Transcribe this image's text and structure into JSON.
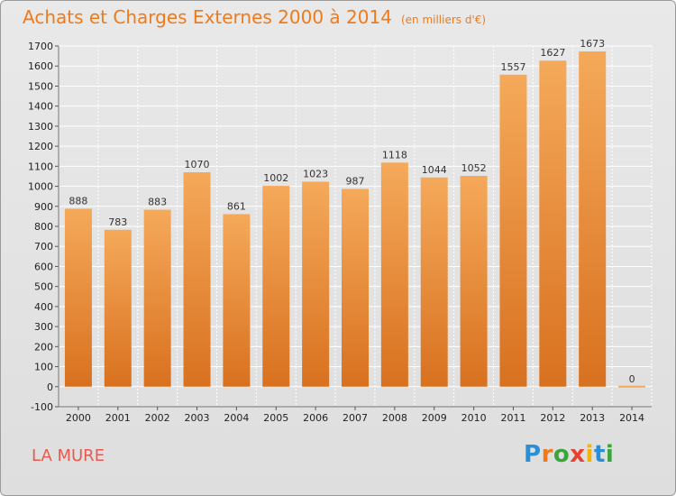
{
  "title": "Achats et Charges Externes 2000 à 2014",
  "subtitle": "(en milliers d'€)",
  "place": "LA MURE",
  "brand": {
    "letters": [
      "P",
      "r",
      "o",
      "x",
      "i",
      "t",
      "i"
    ],
    "colors": [
      "#2b8fd6",
      "#f07a1a",
      "#3aa63a",
      "#e8412f",
      "#f4b400",
      "#2b8fd6",
      "#3aa63a"
    ]
  },
  "colors": {
    "bar_top": "#f5a95a",
    "bar_bottom": "#d8711f",
    "title": "#f07a1a",
    "place": "#e85a4f",
    "grid": "#ffffff"
  },
  "chart_data": {
    "type": "bar",
    "categories": [
      "2000",
      "2001",
      "2002",
      "2003",
      "2004",
      "2005",
      "2006",
      "2007",
      "2008",
      "2009",
      "2010",
      "2011",
      "2012",
      "2013",
      "2014"
    ],
    "values": [
      888,
      783,
      883,
      1070,
      861,
      1002,
      1023,
      987,
      1118,
      1044,
      1052,
      1557,
      1627,
      1673,
      0
    ],
    "title": "Achats et Charges Externes 2000 à 2014",
    "ylim": [
      -100,
      1700
    ],
    "yticks": [
      -100,
      0,
      100,
      200,
      300,
      400,
      500,
      600,
      700,
      800,
      900,
      1000,
      1100,
      1200,
      1300,
      1400,
      1500,
      1600,
      1700
    ],
    "grid": true,
    "xlabel": "",
    "ylabel": ""
  }
}
